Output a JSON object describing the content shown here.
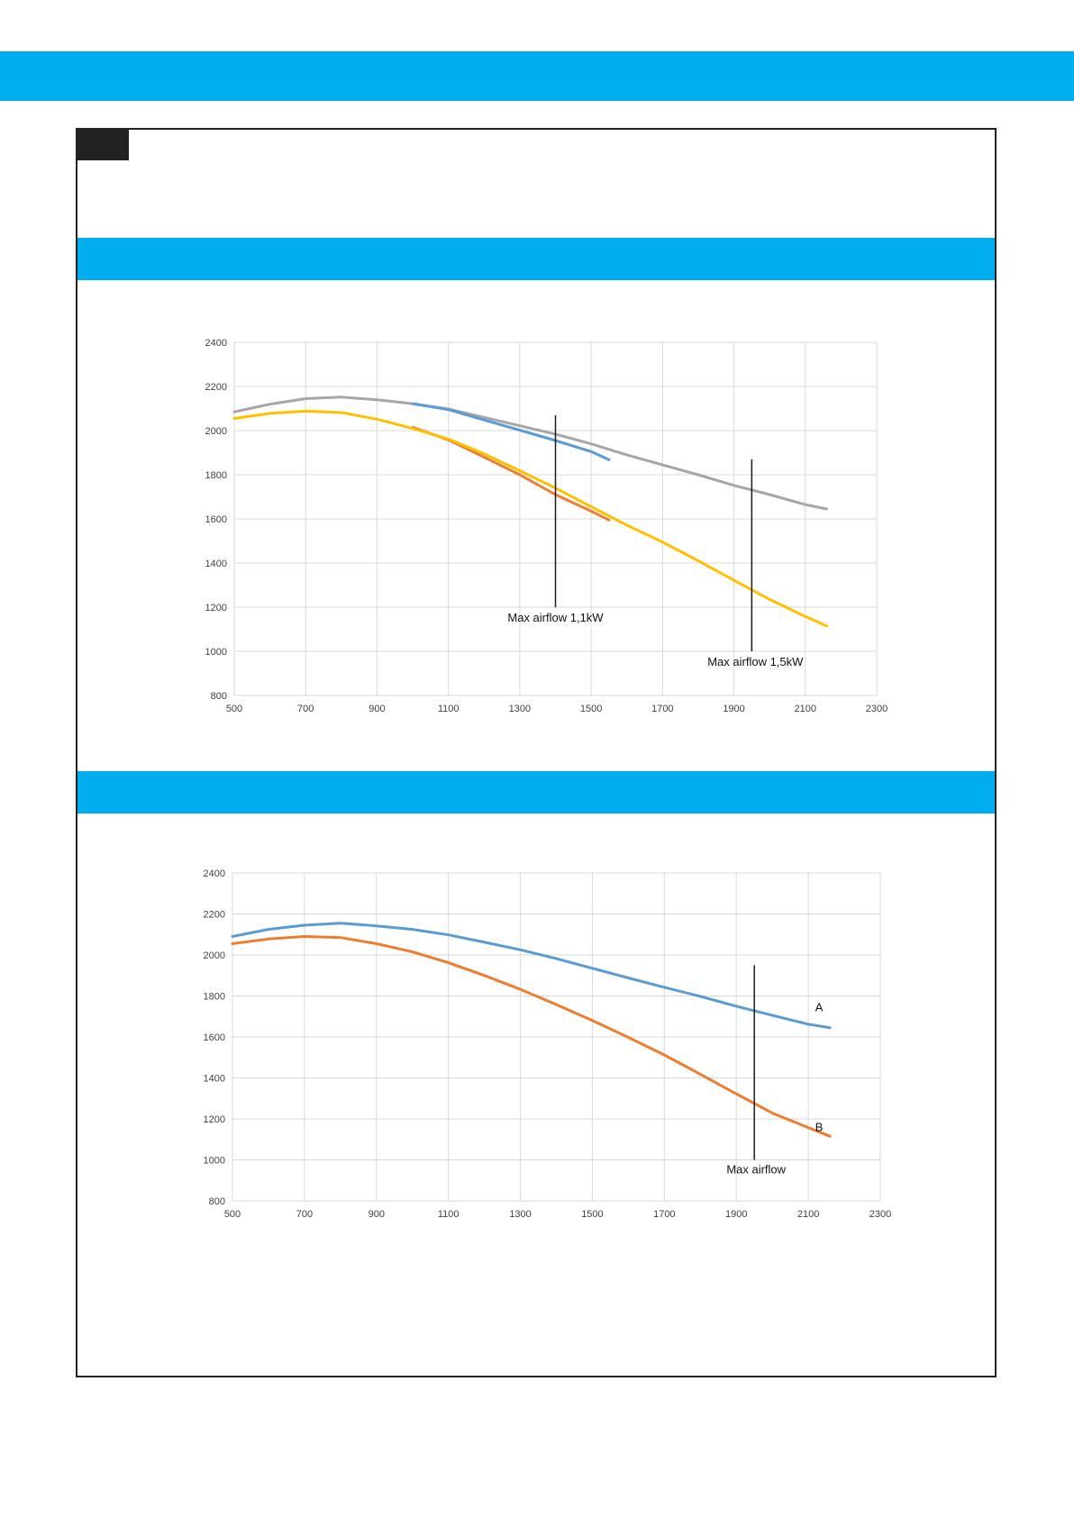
{
  "colors": {
    "band": "#00AEEF",
    "frame": "#222222",
    "grid": "#D9D9D9",
    "axis_text": "#404040",
    "marker_line": "#1A1A1A"
  },
  "chart_data": [
    {
      "type": "line",
      "xlim": [
        500,
        2300
      ],
      "ylim": [
        800,
        2400
      ],
      "xticks": [
        500,
        700,
        900,
        1100,
        1300,
        1500,
        1700,
        1900,
        2100,
        2300
      ],
      "yticks": [
        800,
        1000,
        1200,
        1400,
        1600,
        1800,
        2000,
        2200,
        2400
      ],
      "grid": true,
      "series": [
        {
          "color": "#A6A6A6",
          "x": [
            500,
            600,
            700,
            800,
            900,
            1000,
            1100,
            1200,
            1300,
            1400,
            1500,
            1600,
            1700,
            1800,
            1900,
            2000,
            2100,
            2160
          ],
          "y": [
            2085,
            2120,
            2145,
            2152,
            2140,
            2122,
            2098,
            2060,
            2022,
            1984,
            1940,
            1890,
            1845,
            1800,
            1752,
            1710,
            1665,
            1645
          ]
        },
        {
          "color": "#5B9BD5",
          "x": [
            1000,
            1100,
            1200,
            1300,
            1400,
            1500,
            1550
          ],
          "y": [
            2122,
            2095,
            2048,
            2002,
            1955,
            1905,
            1868
          ]
        },
        {
          "color": "#ED7D31",
          "x": [
            1000,
            1100,
            1200,
            1300,
            1400,
            1500,
            1550
          ],
          "y": [
            2015,
            1958,
            1880,
            1800,
            1710,
            1635,
            1595
          ]
        },
        {
          "color": "#FFC000",
          "x": [
            500,
            600,
            700,
            800,
            900,
            1000,
            1100,
            1200,
            1300,
            1400,
            1500,
            1600,
            1700,
            1800,
            1900,
            2000,
            2100,
            2160
          ],
          "y": [
            2055,
            2078,
            2088,
            2082,
            2052,
            2010,
            1962,
            1895,
            1818,
            1740,
            1655,
            1572,
            1495,
            1410,
            1322,
            1235,
            1158,
            1115
          ]
        }
      ],
      "markers": [
        {
          "x": 1400,
          "y_from": 1200,
          "y_to": 2070
        },
        {
          "x": 1950,
          "y_from": 1000,
          "y_to": 1870
        }
      ],
      "annotations": [
        {
          "text": "Max airflow 1,1kW",
          "x": 1400,
          "y": 1135
        },
        {
          "text": "Max airflow 1,5kW",
          "x": 1960,
          "y": 935
        }
      ]
    },
    {
      "type": "line",
      "xlim": [
        500,
        2300
      ],
      "ylim": [
        800,
        2400
      ],
      "xticks": [
        500,
        700,
        900,
        1100,
        1300,
        1500,
        1700,
        1900,
        2100,
        2300
      ],
      "yticks": [
        800,
        1000,
        1200,
        1400,
        1600,
        1800,
        2000,
        2200,
        2400
      ],
      "grid": true,
      "series": [
        {
          "name": "A",
          "color": "#5B9BD5",
          "x": [
            500,
            600,
            700,
            800,
            900,
            1000,
            1100,
            1200,
            1300,
            1400,
            1500,
            1600,
            1700,
            1800,
            1900,
            2000,
            2100,
            2160
          ],
          "y": [
            2090,
            2125,
            2145,
            2155,
            2142,
            2125,
            2098,
            2062,
            2025,
            1982,
            1935,
            1888,
            1842,
            1798,
            1750,
            1705,
            1662,
            1645
          ]
        },
        {
          "name": "B",
          "color": "#ED7D31",
          "x": [
            500,
            600,
            700,
            800,
            900,
            1000,
            1100,
            1200,
            1300,
            1400,
            1500,
            1600,
            1700,
            1800,
            1900,
            2000,
            2100,
            2160
          ],
          "y": [
            2055,
            2078,
            2090,
            2085,
            2055,
            2015,
            1962,
            1900,
            1832,
            1758,
            1680,
            1598,
            1512,
            1418,
            1322,
            1228,
            1158,
            1115
          ]
        }
      ],
      "markers": [
        {
          "x": 1950,
          "y_from": 1000,
          "y_to": 1950
        }
      ],
      "annotations": [
        {
          "text": "Max airflow",
          "x": 1955,
          "y": 935
        }
      ],
      "series_labels": [
        {
          "text": "A",
          "x": 2130,
          "y": 1725
        },
        {
          "text": "B",
          "x": 2130,
          "y": 1140
        }
      ]
    }
  ]
}
